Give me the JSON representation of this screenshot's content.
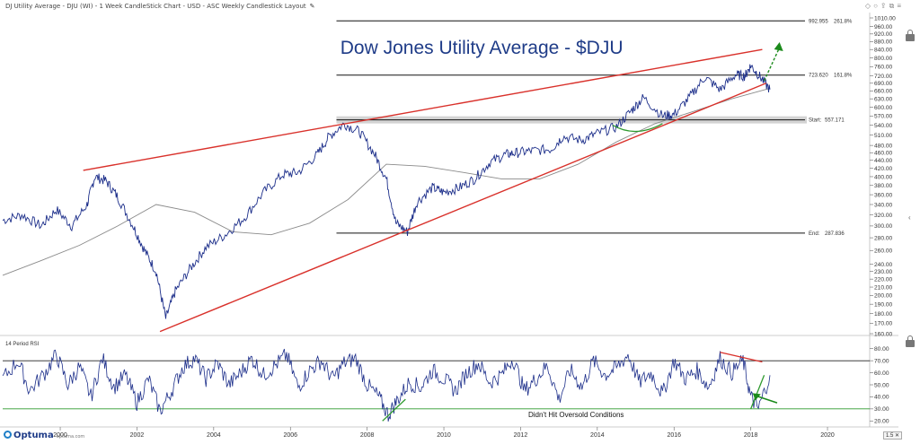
{
  "header": {
    "title": "DJ Utility Average - DJU (WI) - 1 Week CandleStick Chart - USD - ASC Weekly Candlestick Layout"
  },
  "icons": {
    "edit": "pencil-icon",
    "lock": "lock-icon",
    "collapse": "chevron-left-icon",
    "toolbar": [
      "diamond-icon",
      "circle-icon",
      "share-icon",
      "popout-icon",
      "menu-icon"
    ]
  },
  "colors": {
    "price": "#1c2e8a",
    "ma": "#8a8a8a",
    "trendline": "#d9312b",
    "fibline": "#111111",
    "oversold": "#2f9a2f",
    "arrow": "#1b8a1b",
    "band": "#c8c8c8",
    "title": "#1f3c88"
  },
  "footer": {
    "logo": "Optuma",
    "logo_sub": "optuma.com",
    "zoom": "1.5"
  },
  "chart_data": [
    {
      "type": "line",
      "title": "Dow Jones Utility Average - $DJU",
      "y_scale": "log",
      "ylim": [
        160,
        1010
      ],
      "y_ticks": [
        1010,
        960,
        920,
        880,
        840,
        800,
        760,
        720,
        690,
        660,
        630,
        600,
        570,
        540,
        510,
        480,
        460,
        440,
        420,
        400,
        380,
        360,
        340,
        320,
        300,
        280,
        260,
        240,
        230,
        220,
        210,
        200,
        190,
        180,
        170,
        160
      ],
      "x_ticks": [
        "2000",
        "2002",
        "2004",
        "2006",
        "2008",
        "2010",
        "2012",
        "2014",
        "2016",
        "2018",
        "2020"
      ],
      "series": [
        {
          "kind": "price",
          "x": [
            1998.5,
            1999.0,
            1999.5,
            1999.9,
            2000.3,
            2000.7,
            2000.9,
            2001.2,
            2001.5,
            2001.9,
            2002.2,
            2002.5,
            2002.75,
            2003.0,
            2003.4,
            2003.8,
            2004.3,
            2004.8,
            2005.3,
            2005.8,
            2006.2,
            2006.7,
            2007.0,
            2007.4,
            2007.8,
            2008.2,
            2008.5,
            2008.75,
            2009.05,
            2009.3,
            2009.7,
            2010.0,
            2010.4,
            2010.8,
            2011.2,
            2011.6,
            2011.9,
            2012.3,
            2012.8,
            2013.1,
            2013.6,
            2014.0,
            2014.5,
            2014.9,
            2015.2,
            2015.7,
            2016.0,
            2016.4,
            2016.8,
            2017.2,
            2017.6,
            2017.85,
            2018.0,
            2018.25,
            2018.5
          ],
          "y": [
            310,
            320,
            300,
            330,
            300,
            340,
            400,
            390,
            355,
            300,
            260,
            230,
            175,
            205,
            235,
            265,
            285,
            315,
            365,
            405,
            410,
            455,
            505,
            545,
            520,
            455,
            395,
            305,
            290,
            345,
            375,
            365,
            375,
            395,
            435,
            455,
            460,
            465,
            470,
            505,
            495,
            515,
            535,
            590,
            635,
            570,
            575,
            635,
            715,
            665,
            725,
            720,
            765,
            715,
            665
          ]
        },
        {
          "kind": "moving-average",
          "x": [
            1998.5,
            1999.5,
            2000.5,
            2001.5,
            2002.5,
            2003.5,
            2004.5,
            2005.5,
            2006.5,
            2007.5,
            2008.5,
            2009.5,
            2010.5,
            2011.5,
            2012.5,
            2013.5,
            2014.5,
            2015.5,
            2016.5,
            2017.5,
            2018.5
          ],
          "y": [
            225,
            245,
            268,
            300,
            340,
            325,
            290,
            285,
            305,
            350,
            430,
            425,
            410,
            395,
            395,
            430,
            490,
            545,
            585,
            630,
            670
          ]
        }
      ],
      "trendlines": [
        {
          "color": "red",
          "from": [
            2000.6,
            415
          ],
          "to": [
            2018.3,
            840
          ]
        },
        {
          "color": "red",
          "from": [
            2002.6,
            162
          ],
          "to": [
            2018.4,
            690
          ]
        }
      ],
      "levels": [
        {
          "label": "992.955",
          "pct": "261.8%",
          "value": 992.955,
          "x_from": 2007.2
        },
        {
          "label": "723.620",
          "pct": "161.8%",
          "value": 723.62,
          "x_from": 2007.2
        },
        {
          "label": "Start:",
          "value_label": "557.171",
          "value": 557.171,
          "x_from": 2007.2,
          "band": true
        },
        {
          "label": "End:",
          "value_label": "287.836",
          "value": 287.836,
          "x_from": 2007.2
        }
      ],
      "annotations": [
        "green-arc-2015",
        "green-arrow-up-2018"
      ]
    },
    {
      "type": "line",
      "label": "14 Period RSI",
      "ylim": [
        15,
        85
      ],
      "y_ticks": [
        80.0,
        70.0,
        60.0,
        50.0,
        40.0,
        30.0,
        20.0
      ],
      "reference_lines": [
        70,
        30
      ],
      "annotation_text": "Didn't Hit Oversold Conditions",
      "series": [
        {
          "kind": "rsi",
          "x": [
            1998.5,
            1998.9,
            1999.2,
            1999.6,
            1999.9,
            2000.2,
            2000.5,
            2000.8,
            2001.1,
            2001.4,
            2001.7,
            2002.0,
            2002.3,
            2002.6,
            2002.9,
            2003.2,
            2003.5,
            2003.8,
            2004.1,
            2004.4,
            2004.7,
            2005.0,
            2005.3,
            2005.6,
            2005.9,
            2006.2,
            2006.5,
            2006.8,
            2007.1,
            2007.4,
            2007.7,
            2008.0,
            2008.3,
            2008.55,
            2008.8,
            2009.1,
            2009.4,
            2009.7,
            2010.0,
            2010.3,
            2010.6,
            2010.9,
            2011.2,
            2011.5,
            2011.8,
            2012.1,
            2012.4,
            2012.7,
            2013.0,
            2013.3,
            2013.6,
            2013.9,
            2014.2,
            2014.5,
            2014.8,
            2015.1,
            2015.4,
            2015.7,
            2016.0,
            2016.3,
            2016.6,
            2016.9,
            2017.2,
            2017.5,
            2017.8,
            2018.0,
            2018.2,
            2018.5
          ],
          "y": [
            55,
            70,
            45,
            60,
            75,
            50,
            65,
            40,
            72,
            48,
            58,
            35,
            55,
            28,
            45,
            65,
            72,
            55,
            68,
            50,
            60,
            72,
            58,
            66,
            75,
            48,
            62,
            70,
            55,
            68,
            72,
            50,
            40,
            25,
            38,
            52,
            48,
            62,
            55,
            45,
            60,
            68,
            52,
            58,
            72,
            45,
            55,
            66,
            38,
            62,
            48,
            70,
            58,
            64,
            75,
            52,
            60,
            42,
            70,
            55,
            62,
            48,
            72,
            60,
            70,
            40,
            30,
            58
          ]
        }
      ],
      "annotations": [
        {
          "kind": "green-line",
          "from": [
            2008.4,
            20
          ],
          "to": [
            2009.0,
            38
          ]
        },
        {
          "kind": "green-line",
          "from": [
            2018.0,
            30
          ],
          "to": [
            2018.35,
            58
          ]
        },
        {
          "kind": "red-line",
          "from": [
            2017.2,
            77
          ],
          "to": [
            2018.3,
            69
          ]
        },
        {
          "kind": "green-arrow-down",
          "at": [
            2018.5,
            35
          ]
        }
      ]
    }
  ]
}
